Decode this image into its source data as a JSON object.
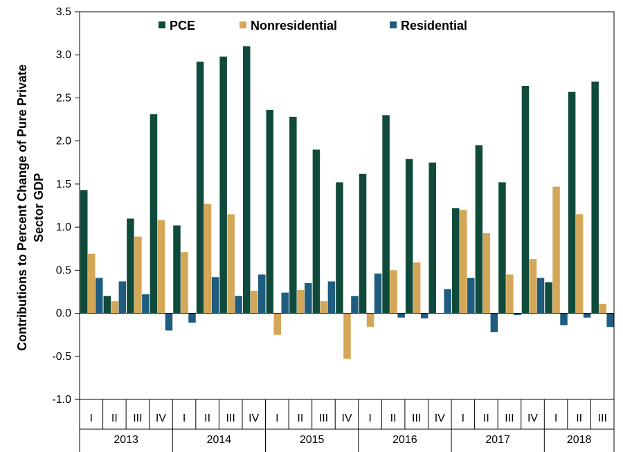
{
  "chart_data": {
    "type": "bar",
    "ylabel_lines": [
      "Contributions to Percent Change of Pure Private",
      "Sector GDP"
    ],
    "ylim": [
      -1.0,
      3.5
    ],
    "yticks": [
      "-1.0",
      "-0.5",
      "0.0",
      "0.5",
      "1.0",
      "1.5",
      "2.0",
      "2.5",
      "3.0",
      "3.5"
    ],
    "legend_position": "top",
    "grid": false,
    "years": [
      {
        "label": "2013",
        "quarters": [
          "I",
          "II",
          "III",
          "IV"
        ]
      },
      {
        "label": "2014",
        "quarters": [
          "I",
          "II",
          "III",
          "IV"
        ]
      },
      {
        "label": "2015",
        "quarters": [
          "I",
          "II",
          "III",
          "IV"
        ]
      },
      {
        "label": "2016",
        "quarters": [
          "I",
          "II",
          "III",
          "IV"
        ]
      },
      {
        "label": "2017",
        "quarters": [
          "I",
          "II",
          "III",
          "IV"
        ]
      },
      {
        "label": "2018",
        "quarters": [
          "I",
          "II",
          "III"
        ]
      }
    ],
    "series": [
      {
        "name": "PCE",
        "color": "#0f4a3a",
        "values": [
          1.43,
          0.2,
          1.1,
          2.31,
          1.02,
          2.92,
          2.98,
          3.1,
          2.36,
          2.28,
          1.9,
          1.52,
          1.62,
          2.3,
          1.79,
          1.75,
          1.22,
          1.95,
          1.52,
          2.64,
          0.36,
          2.57,
          2.69
        ]
      },
      {
        "name": "Nonresidential",
        "color": "#d4a657",
        "values": [
          0.69,
          0.14,
          0.89,
          1.08,
          0.71,
          1.27,
          1.15,
          0.26,
          -0.25,
          0.27,
          0.14,
          -0.53,
          -0.16,
          0.5,
          0.59,
          0.0,
          1.2,
          0.93,
          0.45,
          0.63,
          1.47,
          1.15,
          0.11
        ]
      },
      {
        "name": "Residential",
        "color": "#1f5c7f",
        "values": [
          0.41,
          0.37,
          0.22,
          -0.2,
          -0.11,
          0.42,
          0.2,
          0.45,
          0.24,
          0.35,
          0.37,
          0.2,
          0.46,
          -0.05,
          -0.06,
          0.28,
          0.41,
          -0.22,
          -0.02,
          0.41,
          -0.14,
          -0.05,
          -0.16
        ]
      }
    ]
  }
}
